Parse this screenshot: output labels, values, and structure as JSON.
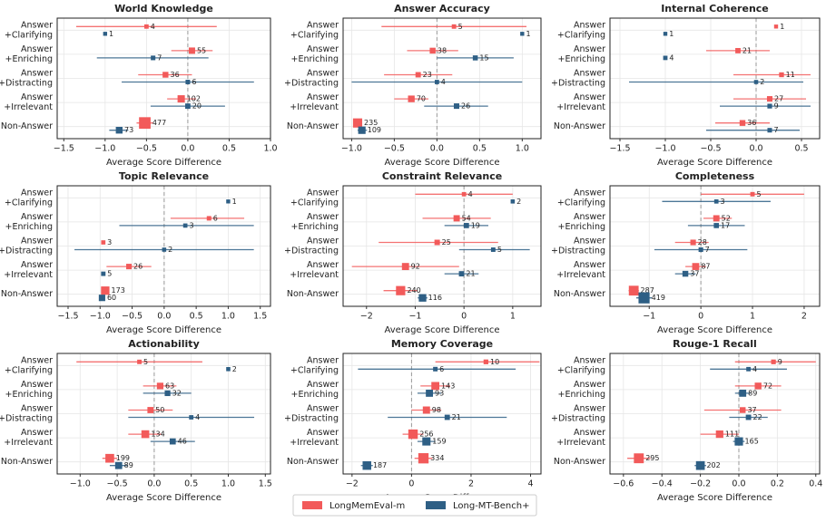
{
  "chart_data": [
    {
      "type": "forest",
      "title": "World Knowledge",
      "xlabel": "Average Score Difference",
      "categories": [
        [
          "Answer",
          "+Clarifying"
        ],
        [
          "Answer",
          "+Enriching"
        ],
        [
          "Answer",
          "+Distracting"
        ],
        [
          "Answer",
          "+Irrelevant"
        ],
        [
          "Non-Answer"
        ]
      ],
      "xlim": [
        -1.58,
        1.0
      ],
      "xticks": [
        {
          "value": -1.5,
          "label": "−1.5"
        },
        {
          "value": -1.0,
          "label": "−1.0"
        },
        {
          "value": -0.5,
          "label": "−0.5"
        },
        {
          "value": 0,
          "label": "0.0"
        },
        0.5,
        {
          "value": 1,
          "label": "1.0"
        }
      ],
      "grid": true,
      "series": [
        {
          "values": [
            -0.5,
            0.05,
            -0.27,
            -0.08,
            -0.52
          ],
          "ci": [
            [
              -1.35,
              0.35
            ],
            [
              -0.2,
              0.3
            ],
            [
              -0.6,
              0.05
            ],
            [
              -0.25,
              0.1
            ],
            [
              -0.62,
              -0.42
            ]
          ],
          "counts": [
            4,
            55,
            36,
            102,
            477
          ]
        },
        {
          "values": [
            -1.0,
            -0.42,
            0.0,
            0.0,
            -0.83
          ],
          "ci": [
            null,
            [
              -1.1,
              0.25
            ],
            [
              -0.8,
              0.8
            ],
            [
              -0.45,
              0.45
            ],
            [
              -0.95,
              -0.72
            ]
          ],
          "counts": [
            1,
            7,
            6,
            20,
            73
          ]
        }
      ]
    },
    {
      "type": "forest",
      "title": "Answer Accuracy",
      "xlabel": "Average Score Difference",
      "categories": [
        [
          "Answer",
          "+Clarifying"
        ],
        [
          "Answer",
          "+Enriching"
        ],
        [
          "Answer",
          "+Distracting"
        ],
        [
          "Answer",
          "+Irrelevant"
        ],
        [
          "Non-Answer"
        ]
      ],
      "xlim": [
        -1.1,
        1.22
      ],
      "xticks": [
        {
          "value": -1.0,
          "label": "−1.0"
        },
        {
          "value": -0.5,
          "label": "−0.5"
        },
        {
          "value": 0,
          "label": "0.0"
        },
        0.5,
        {
          "value": 1,
          "label": "1.0"
        }
      ],
      "grid": true,
      "series": [
        {
          "values": [
            0.2,
            -0.05,
            -0.22,
            -0.3,
            -0.93
          ],
          "ci": [
            [
              -0.65,
              1.05
            ],
            [
              -0.35,
              0.25
            ],
            [
              -0.62,
              0.18
            ],
            [
              -0.5,
              -0.1
            ],
            [
              -0.97,
              -0.89
            ]
          ],
          "counts": [
            5,
            38,
            23,
            70,
            235
          ]
        },
        {
          "values": [
            1.0,
            0.45,
            0.0,
            0.23,
            -0.88
          ],
          "ci": [
            null,
            [
              0.0,
              0.9
            ],
            [
              -1.0,
              1.0
            ],
            [
              -0.15,
              0.6
            ],
            [
              -0.93,
              -0.82
            ]
          ],
          "counts": [
            1,
            15,
            4,
            26,
            109
          ]
        }
      ]
    },
    {
      "type": "forest",
      "title": "Internal Coherence",
      "xlabel": "Average Score Difference",
      "categories": [
        [
          "Answer",
          "+Clarifying"
        ],
        [
          "Answer",
          "+Enriching"
        ],
        [
          "Answer",
          "+Distracting"
        ],
        [
          "Answer",
          "+Irrelevant"
        ],
        [
          "Non-Answer"
        ]
      ],
      "xlim": [
        -1.61,
        0.7
      ],
      "xticks": [
        {
          "value": -1.5,
          "label": "−1.5"
        },
        {
          "value": -1.0,
          "label": "−1.0"
        },
        {
          "value": -0.5,
          "label": "−0.5"
        },
        {
          "value": 0,
          "label": "0.0"
        },
        0.5
      ],
      "grid": true,
      "series": [
        {
          "values": [
            0.22,
            -0.2,
            0.28,
            0.15,
            -0.15
          ],
          "ci": [
            null,
            [
              -0.55,
              0.15
            ],
            [
              -0.25,
              0.6
            ],
            [
              -0.25,
              0.55
            ],
            [
              -0.45,
              0.15
            ]
          ],
          "counts": [
            1,
            21,
            11,
            27,
            36
          ]
        },
        {
          "values": [
            -1.0,
            -1.0,
            0.0,
            0.15,
            0.15
          ],
          "ci": [
            null,
            null,
            [
              -1.4,
              0.52
            ],
            [
              -0.4,
              0.6
            ],
            [
              -0.55,
              0.48
            ]
          ],
          "counts": [
            1,
            4,
            2,
            9,
            7
          ]
        }
      ]
    },
    {
      "type": "forest",
      "title": "Topic Relevance",
      "xlabel": "Average Score Difference",
      "categories": [
        [
          "Answer",
          "+Clarifying"
        ],
        [
          "Answer",
          "+Enriching"
        ],
        [
          "Answer",
          "+Distracting"
        ],
        [
          "Answer",
          "+Irrelevant"
        ],
        [
          "Non-Answer"
        ]
      ],
      "xlim": [
        -1.67,
        1.66
      ],
      "xticks": [
        {
          "value": -1.5,
          "label": "−1.5"
        },
        {
          "value": -1.0,
          "label": "−1.0"
        },
        {
          "value": -0.5,
          "label": "−0.5"
        },
        {
          "value": 0,
          "label": "0.0"
        },
        0.5,
        {
          "value": 1,
          "label": "1.0"
        },
        1.5
      ],
      "grid": true,
      "series": [
        {
          "values": [
            null,
            0.7,
            -0.95,
            -0.55,
            -0.92
          ],
          "ci": [
            null,
            [
              0.1,
              1.25
            ],
            null,
            [
              -0.9,
              -0.2
            ],
            [
              -0.97,
              -0.87
            ]
          ],
          "counts": [
            null,
            6,
            3,
            26,
            173
          ]
        },
        {
          "values": [
            1.0,
            0.33,
            0.0,
            -0.95,
            -0.97
          ],
          "ci": [
            null,
            [
              -0.7,
              1.4
            ],
            [
              -1.4,
              1.4
            ],
            null,
            [
              -1.0,
              -0.94
            ]
          ],
          "counts": [
            1,
            3,
            2,
            5,
            60
          ]
        }
      ]
    },
    {
      "type": "forest",
      "title": "Constraint Relevance",
      "xlabel": "Average Score Difference",
      "categories": [
        [
          "Answer",
          "+Clarifying"
        ],
        [
          "Answer",
          "+Enriching"
        ],
        [
          "Answer",
          "+Distracting"
        ],
        [
          "Answer",
          "+Irrelevant"
        ],
        [
          "Non-Answer"
        ]
      ],
      "xlim": [
        -2.48,
        1.58
      ],
      "xticks": [
        {
          "value": -2,
          "label": "−2"
        },
        {
          "value": -1,
          "label": "−1"
        },
        0,
        1
      ],
      "grid": true,
      "series": [
        {
          "values": [
            0.0,
            -0.15,
            -0.55,
            -1.2,
            -1.3
          ],
          "ci": [
            [
              -1.0,
              1.0
            ],
            [
              -0.85,
              0.55
            ],
            [
              -1.75,
              0.7
            ],
            [
              -2.3,
              -0.1
            ],
            [
              -1.65,
              -0.95
            ]
          ],
          "counts": [
            4,
            54,
            25,
            92,
            240
          ]
        },
        {
          "values": [
            1.0,
            0.05,
            0.6,
            -0.05,
            -0.85
          ],
          "ci": [
            null,
            [
              -0.4,
              0.5
            ],
            [
              -0.1,
              1.35
            ],
            [
              -0.4,
              0.3
            ],
            [
              -0.95,
              -0.75
            ]
          ],
          "counts": [
            2,
            19,
            5,
            21,
            116
          ]
        }
      ]
    },
    {
      "type": "forest",
      "title": "Completeness",
      "xlabel": "Average Score Difference",
      "categories": [
        [
          "Answer",
          "+Clarifying"
        ],
        [
          "Answer",
          "+Enriching"
        ],
        [
          "Answer",
          "+Distracting"
        ],
        [
          "Answer",
          "+Irrelevant"
        ],
        [
          "Non-Answer"
        ]
      ],
      "xlim": [
        -1.76,
        2.3
      ],
      "xticks": [
        {
          "value": -1,
          "label": "−1"
        },
        0,
        1,
        2
      ],
      "grid": true,
      "series": [
        {
          "values": [
            1.0,
            0.3,
            -0.15,
            -0.1,
            -1.3
          ],
          "ci": [
            [
              0.0,
              2.0
            ],
            [
              0.05,
              0.6
            ],
            [
              -0.5,
              0.15
            ],
            [
              -0.3,
              0.1
            ],
            [
              -1.4,
              -1.2
            ]
          ],
          "counts": [
            5,
            52,
            28,
            87,
            287
          ]
        },
        {
          "values": [
            0.3,
            0.3,
            0.0,
            -0.3,
            -1.1
          ],
          "ci": [
            [
              -0.75,
              1.35
            ],
            [
              -0.25,
              0.85
            ],
            [
              -0.9,
              0.9
            ],
            [
              -0.5,
              -0.1
            ],
            [
              -1.25,
              -0.95
            ]
          ],
          "counts": [
            3,
            17,
            7,
            37,
            419
          ]
        }
      ]
    },
    {
      "type": "forest",
      "title": "Actionability",
      "xlabel": "Average Score Difference",
      "categories": [
        [
          "Answer",
          "+Clarifying"
        ],
        [
          "Answer",
          "+Enriching"
        ],
        [
          "Answer",
          "+Distracting"
        ],
        [
          "Answer",
          "+Irrelevant"
        ],
        [
          "Non-Answer"
        ]
      ],
      "xlim": [
        -1.31,
        1.57
      ],
      "xticks": [
        {
          "value": -1.0,
          "label": "−1.0"
        },
        {
          "value": -0.5,
          "label": "−0.5"
        },
        {
          "value": 0,
          "label": "0.0"
        },
        0.5,
        {
          "value": 1,
          "label": "1.0"
        },
        1.5
      ],
      "grid": true,
      "series": [
        {
          "values": [
            -0.2,
            0.08,
            -0.05,
            -0.12,
            -0.6
          ],
          "ci": [
            [
              -1.05,
              0.65
            ],
            [
              -0.15,
              0.3
            ],
            [
              -0.35,
              0.25
            ],
            [
              -0.35,
              0.1
            ],
            [
              -0.7,
              -0.5
            ]
          ],
          "counts": [
            5,
            63,
            50,
            134,
            199
          ]
        },
        {
          "values": [
            1.0,
            0.18,
            0.5,
            0.25,
            -0.48
          ],
          "ci": [
            null,
            [
              -0.15,
              0.5
            ],
            [
              -0.35,
              1.35
            ],
            [
              -0.05,
              0.55
            ],
            [
              -0.6,
              -0.36
            ]
          ],
          "counts": [
            2,
            32,
            4,
            46,
            89
          ]
        }
      ]
    },
    {
      "type": "forest",
      "title": "Memory Coverage",
      "xlabel": "Average Score Difference",
      "categories": [
        [
          "Answer",
          "+Clarifying"
        ],
        [
          "Answer",
          "+Enriching"
        ],
        [
          "Answer",
          "+Distracting"
        ],
        [
          "Answer",
          "+Irrelevant"
        ],
        [
          "Non-Answer"
        ]
      ],
      "xlim": [
        -2.3,
        4.35
      ],
      "xticks": [
        {
          "value": -2,
          "label": "−2"
        },
        0,
        2,
        4
      ],
      "grid": true,
      "series": [
        {
          "values": [
            2.5,
            0.8,
            0.5,
            0.05,
            0.4
          ],
          "ci": [
            [
              0.8,
              4.3
            ],
            [
              0.3,
              1.3
            ],
            [
              0.0,
              1.0
            ],
            [
              -0.3,
              0.4
            ],
            [
              0.1,
              0.7
            ]
          ],
          "counts": [
            10,
            143,
            98,
            256,
            334
          ]
        },
        {
          "values": [
            0.8,
            0.6,
            1.2,
            0.5,
            -1.5
          ],
          "ci": [
            [
              -1.8,
              3.5
            ],
            [
              0.2,
              1.0
            ],
            [
              -0.8,
              3.2
            ],
            [
              0.2,
              0.8
            ],
            [
              -1.7,
              -1.3
            ]
          ],
          "counts": [
            6,
            93,
            21,
            159,
            187
          ]
        }
      ]
    },
    {
      "type": "forest",
      "title": "Rouge-1 Recall",
      "xlabel": "Average Score Difference",
      "categories": [
        [
          "Answer",
          "+Clarifying"
        ],
        [
          "Answer",
          "+Enriching"
        ],
        [
          "Answer",
          "+Distracting"
        ],
        [
          "Answer",
          "+Irrelevant"
        ],
        [
          "Non-Answer"
        ]
      ],
      "xlim": [
        -0.67,
        0.42
      ],
      "xticks": [
        {
          "value": -0.6,
          "label": "−0.6"
        },
        {
          "value": -0.4,
          "label": "−0.4"
        },
        {
          "value": -0.2,
          "label": "−0.2"
        },
        {
          "value": 0,
          "label": "0.0"
        },
        0.2,
        0.4
      ],
      "grid": true,
      "series": [
        {
          "values": [
            0.18,
            0.1,
            0.02,
            -0.1,
            -0.52
          ],
          "ci": [
            [
              -0.02,
              0.4
            ],
            [
              -0.02,
              0.22
            ],
            [
              -0.18,
              0.22
            ],
            [
              -0.2,
              0.0
            ],
            [
              -0.58,
              -0.46
            ]
          ],
          "counts": [
            9,
            72,
            37,
            111,
            295
          ]
        },
        {
          "values": [
            0.05,
            0.02,
            0.05,
            0.0,
            -0.2
          ],
          "ci": [
            [
              -0.15,
              0.25
            ],
            [
              -0.02,
              0.06
            ],
            [
              -0.05,
              0.15
            ],
            [
              -0.03,
              0.03
            ],
            [
              -0.23,
              -0.17
            ]
          ],
          "counts": [
            4,
            89,
            22,
            165,
            202
          ]
        }
      ]
    }
  ],
  "legend": {
    "position": "lower center",
    "entries": [
      {
        "name": "LongMemEval-m",
        "color": "#f25a5a"
      },
      {
        "name": "Long-MT-Bench+",
        "color": "#2e5f85"
      }
    ]
  }
}
